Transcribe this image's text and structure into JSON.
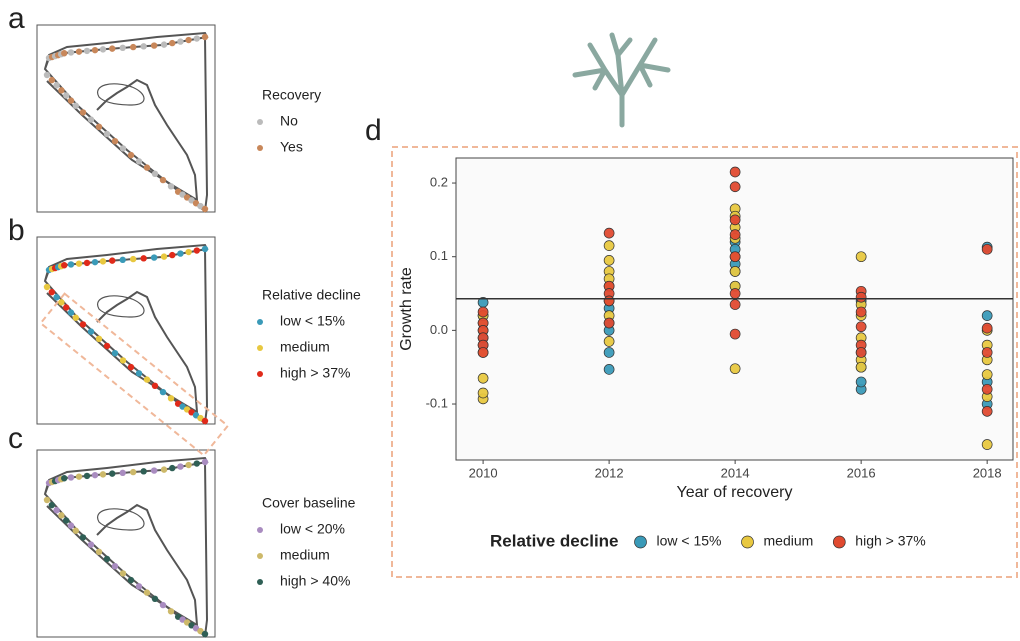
{
  "panels": {
    "a": {
      "label": "a",
      "legend_title": "Recovery",
      "entries": [
        "No",
        "Yes"
      ]
    },
    "b": {
      "label": "b",
      "legend_title": "Relative decline",
      "entries": [
        "low < 15%",
        "medium",
        "high > 37%"
      ]
    },
    "c": {
      "label": "c",
      "legend_title": "Cover baseline",
      "entries": [
        "low < 20%",
        "medium",
        "high > 40%"
      ]
    },
    "d": {
      "label": "d"
    }
  },
  "chart_data": {
    "type": "scatter",
    "xlabel": "Year of recovery",
    "ylabel": "Growth rate",
    "legend_title": "Relative decline",
    "legend_position": "bottom",
    "xlim": [
      2009.57,
      2018.41
    ],
    "ylim": [
      -0.176,
      0.234
    ],
    "xticks": [
      2010,
      2012,
      2014,
      2016,
      2018
    ],
    "yticks": [
      -0.1,
      {
        "value": 0,
        "label": "0.0"
      },
      0.1,
      0.2
    ],
    "hline": 0.043,
    "series": [
      {
        "name": "low < 15%",
        "color": "#3a9ab8",
        "x": [
          2010,
          2010,
          2010,
          2010,
          2012,
          2012,
          2012,
          2012,
          2012,
          2014,
          2014,
          2014,
          2014,
          2014,
          2016,
          2016,
          2016,
          2016,
          2016,
          2018,
          2018,
          2018,
          2018
        ],
        "values": [
          0.038,
          0.02,
          -0.01,
          -0.02,
          -0.053,
          -0.03,
          0.0,
          0.01,
          0.03,
          0.12,
          0.11,
          0.09,
          0.08,
          0.06,
          -0.08,
          -0.07,
          -0.05,
          -0.03,
          0.04,
          0.113,
          0.02,
          -0.07,
          -0.1
        ]
      },
      {
        "name": "medium",
        "color": "#e8c840",
        "x": [
          2010,
          2010,
          2010,
          2010,
          2010,
          2010,
          2010,
          2012,
          2012,
          2012,
          2012,
          2012,
          2012,
          2012,
          2012,
          2014,
          2014,
          2014,
          2014,
          2014,
          2014,
          2014,
          2014,
          2016,
          2016,
          2016,
          2016,
          2016,
          2016,
          2018,
          2018,
          2018,
          2018,
          2018,
          2018
        ],
        "values": [
          -0.093,
          -0.085,
          -0.065,
          0.0,
          0.01,
          0.02,
          -0.03,
          0.115,
          0.095,
          0.08,
          0.07,
          0.06,
          0.04,
          0.02,
          -0.015,
          0.165,
          0.155,
          0.14,
          0.125,
          0.1,
          0.08,
          0.06,
          -0.052,
          0.1,
          0.035,
          0.02,
          -0.01,
          -0.04,
          -0.05,
          -0.155,
          -0.09,
          -0.06,
          -0.04,
          -0.02,
          0.0
        ]
      },
      {
        "name": "high > 37%",
        "color": "#e04a30",
        "x": [
          2010,
          2010,
          2010,
          2010,
          2010,
          2010,
          2012,
          2012,
          2012,
          2012,
          2012,
          2014,
          2014,
          2014,
          2014,
          2014,
          2014,
          2014,
          2014,
          2016,
          2016,
          2016,
          2016,
          2016,
          2016,
          2018,
          2018,
          2018,
          2018,
          2018
        ],
        "values": [
          0.025,
          0.01,
          0.0,
          -0.01,
          -0.02,
          -0.03,
          0.132,
          0.06,
          0.05,
          0.04,
          0.01,
          0.215,
          0.195,
          0.15,
          0.13,
          0.1,
          0.05,
          0.035,
          -0.005,
          0.053,
          0.045,
          0.025,
          0.005,
          -0.02,
          -0.03,
          0.11,
          0.003,
          -0.03,
          -0.08,
          -0.11
        ]
      }
    ]
  }
}
